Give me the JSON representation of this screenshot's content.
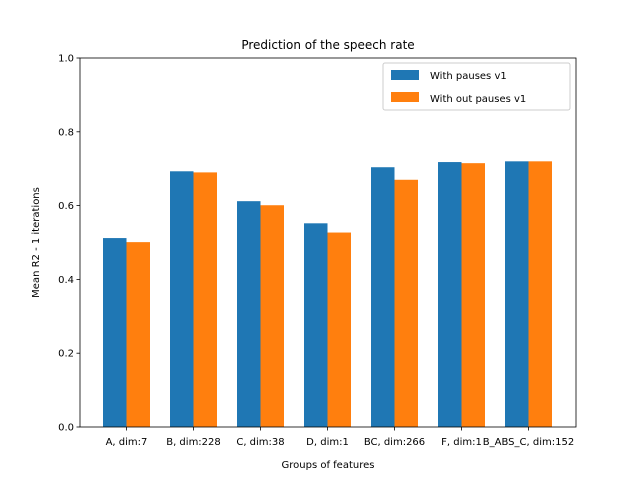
{
  "chart_data": {
    "type": "bar",
    "title": "Prediction of the speech rate",
    "xlabel": "Groups of features",
    "ylabel": "Mean R2 - 1 iterations",
    "ylim": [
      0,
      1.0
    ],
    "yticks": [
      "0.0",
      "0.2",
      "0.4",
      "0.6",
      "0.8",
      "1.0"
    ],
    "ytick_values": [
      0,
      0.2,
      0.4,
      0.6,
      0.8,
      1.0
    ],
    "categories": [
      "A, dim:7",
      "B, dim:228",
      "C, dim:38",
      "D, dim:1",
      "BC, dim:266",
      "F, dim:1",
      "B_ABS_C, dim:152"
    ],
    "series": [
      {
        "name": "With pauses v1",
        "color": "#1f77b4",
        "values": [
          0.512,
          0.693,
          0.612,
          0.552,
          0.704,
          0.718,
          0.72
        ]
      },
      {
        "name": "With out pauses v1",
        "color": "#ff7f0e",
        "values": [
          0.501,
          0.69,
          0.601,
          0.527,
          0.67,
          0.715,
          0.72
        ]
      }
    ],
    "legend_position": "top-right",
    "grid": false
  }
}
